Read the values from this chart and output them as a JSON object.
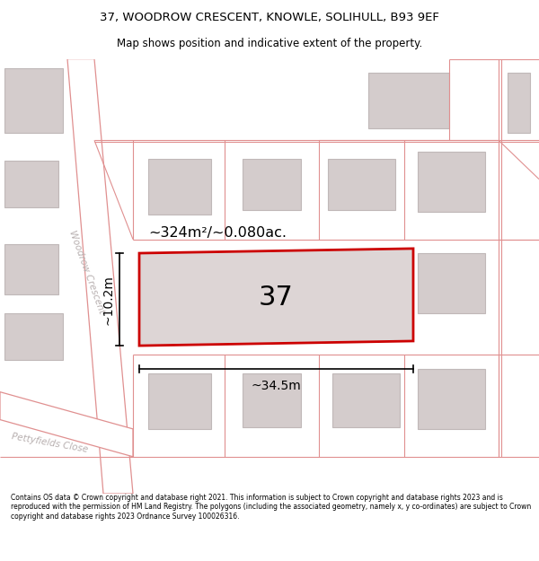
{
  "title_line1": "37, WOODROW CRESCENT, KNOWLE, SOLIHULL, B93 9EF",
  "title_line2": "Map shows position and indicative extent of the property.",
  "footer": "Contains OS data © Crown copyright and database right 2021. This information is subject to Crown copyright and database rights 2023 and is reproduced with the permission of HM Land Registry. The polygons (including the associated geometry, namely x, y co-ordinates) are subject to Crown copyright and database rights 2023 Ordnance Survey 100026316.",
  "area_label": "~324m²/~0.080ac.",
  "width_label": "~34.5m",
  "height_label": "~10.2m",
  "plot_number": "37",
  "map_bg": "#f2eded",
  "road_color": "#e09090",
  "road_fill": "#ffffff",
  "building_fill": "#d4cccc",
  "building_edge": "#c0b8b8",
  "plot_fill": "#ddd5d5",
  "plot_edge": "#cc0000",
  "plot_lw": 2.0,
  "road_name1": "Woodrow Crescent",
  "road_name2": "Pettyfields Close"
}
